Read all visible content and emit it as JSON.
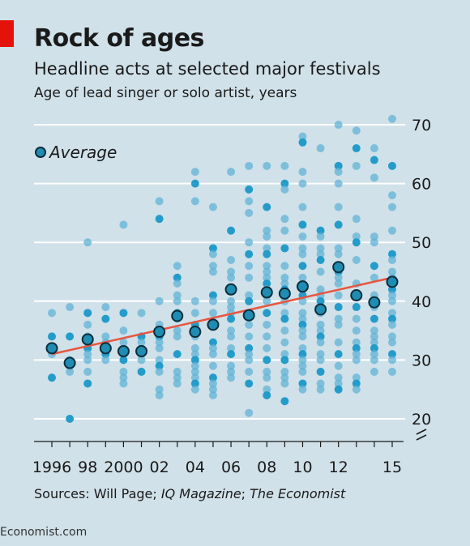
{
  "header": {
    "title": "Rock of ages",
    "subtitle": "Headline acts at selected major festivals",
    "unit": "Age of lead singer or solo artist, years"
  },
  "footer": {
    "source_prefix": "Sources: Will Page; ",
    "source_italic": "IQ Magazine",
    "source_mid": "; ",
    "source_italic2": "The Economist",
    "credit": "Economist.com"
  },
  "colors": {
    "background": "#d0e1e9",
    "headliner_dot": "#61b3d6",
    "headliner_dot_dark": "#1a98c8",
    "average_dot": "#1f8db3",
    "average_outline": "#0b2e3b",
    "trend_line": "#e8553f",
    "gridline": "#ffffff",
    "accent_tab": "#e3120b"
  },
  "chart_data": {
    "type": "scatter",
    "legend": {
      "label": "Average",
      "placement": "top-left"
    },
    "x_tick_labels": [
      "1996",
      "98",
      "2000",
      "02",
      "04",
      "06",
      "08",
      "10",
      "12",
      "15"
    ],
    "x_tick_years": [
      1996,
      1998,
      2000,
      2002,
      2004,
      2006,
      2008,
      2010,
      2012,
      2015
    ],
    "xlim": [
      1996,
      2015
    ],
    "y_ticks": [
      20,
      30,
      40,
      50,
      60,
      70
    ],
    "ylim": [
      20,
      70
    ],
    "y_axis_break": true,
    "grid": true,
    "trend_line": {
      "x": [
        1996,
        2015
      ],
      "y": [
        31,
        44
      ]
    },
    "averages": {
      "x": [
        1996,
        1997,
        1998,
        1999,
        2000,
        2001,
        2002,
        2003,
        2004,
        2005,
        2006,
        2007,
        2008,
        2009,
        2010,
        2011,
        2012,
        2013,
        2014,
        2015
      ],
      "y": [
        32,
        29.5,
        33.5,
        32,
        31.5,
        31.5,
        34.8,
        37.5,
        34.8,
        36,
        42,
        37.6,
        41.5,
        41.3,
        42.5,
        38.6,
        45.8,
        41,
        39.8,
        43.3
      ]
    },
    "headliners": [
      {
        "year": 1996,
        "ages": [
          38,
          34,
          32,
          32,
          31,
          27
        ]
      },
      {
        "year": 1997,
        "ages": [
          39,
          34,
          30,
          29,
          28,
          20
        ]
      },
      {
        "year": 1998,
        "ages": [
          50,
          38,
          36,
          34,
          33,
          32,
          31,
          30,
          28,
          26
        ]
      },
      {
        "year": 1999,
        "ages": [
          39,
          37,
          34,
          33,
          32,
          31,
          30
        ]
      },
      {
        "year": 2000,
        "ages": [
          53,
          38,
          35,
          33,
          31,
          30,
          28,
          27,
          26
        ]
      },
      {
        "year": 2001,
        "ages": [
          38,
          34,
          33,
          31,
          30,
          28
        ]
      },
      {
        "year": 2002,
        "ages": [
          57,
          54,
          40,
          36,
          35,
          34,
          33,
          32,
          30,
          29,
          28,
          25,
          24
        ]
      },
      {
        "year": 2003,
        "ages": [
          46,
          44,
          43,
          41,
          40,
          38,
          37,
          35,
          34,
          31,
          28,
          27,
          26
        ]
      },
      {
        "year": 2004,
        "ages": [
          62,
          60,
          57,
          40,
          38,
          36,
          34,
          32,
          31,
          30,
          29,
          28,
          27,
          26,
          25
        ]
      },
      {
        "year": 2005,
        "ages": [
          56,
          49,
          48,
          46,
          45,
          41,
          40,
          38,
          36,
          33,
          32,
          31,
          29,
          27,
          26,
          25,
          24
        ]
      },
      {
        "year": 2006,
        "ages": [
          62,
          52,
          47,
          45,
          44,
          42,
          40,
          39,
          38,
          37,
          35,
          34,
          32,
          31,
          29,
          28,
          27
        ]
      },
      {
        "year": 2007,
        "ages": [
          63,
          59,
          57,
          55,
          50,
          48,
          46,
          44,
          41,
          40,
          38,
          36,
          34,
          32,
          31,
          30,
          28,
          26,
          21
        ]
      },
      {
        "year": 2008,
        "ages": [
          63,
          56,
          52,
          51,
          49,
          48,
          46,
          45,
          44,
          43,
          42,
          41,
          40,
          38,
          36,
          34,
          32,
          30,
          28,
          27,
          25,
          24
        ]
      },
      {
        "year": 2009,
        "ages": [
          63,
          60,
          59,
          54,
          52,
          49,
          46,
          44,
          43,
          42,
          41,
          40,
          38,
          37,
          35,
          33,
          31,
          30,
          28,
          27,
          26,
          23
        ]
      },
      {
        "year": 2010,
        "ages": [
          68,
          67,
          62,
          60,
          56,
          53,
          51,
          49,
          48,
          46,
          44,
          43,
          42,
          41,
          40,
          38,
          37,
          36,
          35,
          34,
          32,
          31,
          30,
          29,
          28,
          26,
          25
        ]
      },
      {
        "year": 2011,
        "ages": [
          66,
          52,
          51,
          49,
          48,
          47,
          45,
          42,
          41,
          40,
          38,
          36,
          35,
          34,
          33,
          31,
          30,
          28,
          26,
          25
        ]
      },
      {
        "year": 2012,
        "ages": [
          70,
          63,
          62,
          60,
          56,
          53,
          49,
          48,
          46,
          45,
          44,
          43,
          41,
          39,
          37,
          36,
          33,
          31,
          29,
          27,
          26,
          25
        ]
      },
      {
        "year": 2013,
        "ages": [
          69,
          66,
          63,
          54,
          51,
          50,
          47,
          43,
          41,
          39,
          37,
          35,
          33,
          32,
          31,
          30,
          27,
          26,
          25
        ]
      },
      {
        "year": 2014,
        "ages": [
          66,
          64,
          61,
          51,
          50,
          46,
          44,
          41,
          39,
          37,
          35,
          34,
          33,
          32,
          31,
          30,
          28
        ]
      },
      {
        "year": 2015,
        "ages": [
          71,
          63,
          58,
          56,
          52,
          48,
          47,
          45,
          44,
          42,
          41,
          40,
          38,
          37,
          36,
          34,
          33,
          31,
          30,
          28
        ]
      }
    ]
  }
}
